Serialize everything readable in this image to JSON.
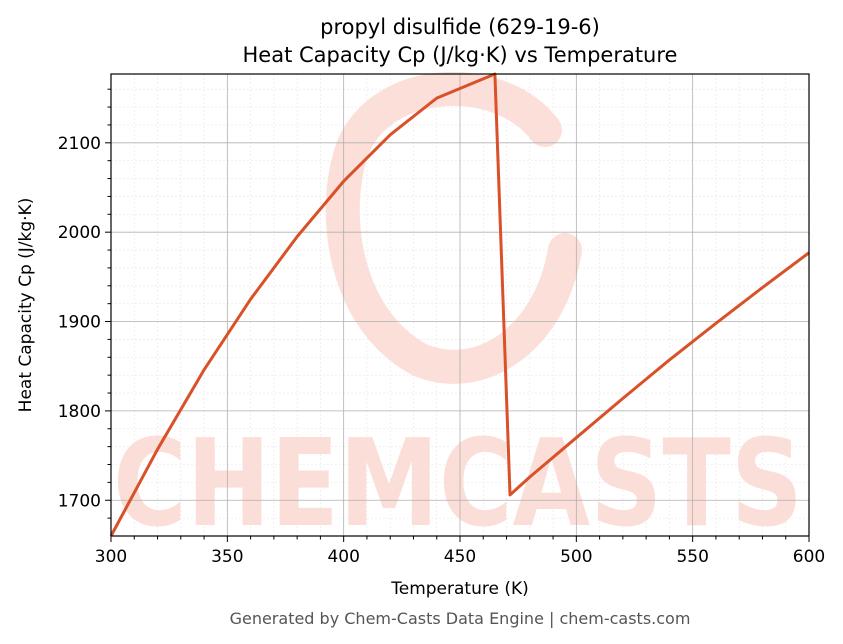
{
  "chart_data": {
    "type": "line",
    "title": "propyl disulfide (629-19-6)",
    "subtitle": "Heat Capacity Cp (J/kg·K) vs Temperature",
    "xlabel": "Temperature (K)",
    "ylabel": "Heat Capacity Cp (J/kg·K)",
    "xlim": [
      300,
      600
    ],
    "ylim": [
      1660,
      2177
    ],
    "x_ticks": [
      "300",
      "350",
      "400",
      "450",
      "500",
      "550",
      "600"
    ],
    "y_ticks": [
      "1700",
      "1800",
      "1900",
      "2000",
      "2100"
    ],
    "grid": true,
    "series": [
      {
        "color": "#d95128",
        "x": [
          300,
          320,
          340,
          360,
          380,
          400,
          420,
          440,
          465,
          471.5,
          480,
          500,
          520,
          540,
          560,
          580,
          600
        ],
        "y": [
          1660,
          1757,
          1846,
          1925,
          1995,
          2057,
          2109,
          2150,
          2177,
          1706,
          1726,
          1770,
          1814,
          1857,
          1898,
          1938,
          1977
        ]
      }
    ]
  },
  "watermark": {
    "text": "CHEMCASTS",
    "color": "#fcd9d2"
  },
  "footer": "Generated by Chem-Casts Data Engine | chem-casts.com"
}
